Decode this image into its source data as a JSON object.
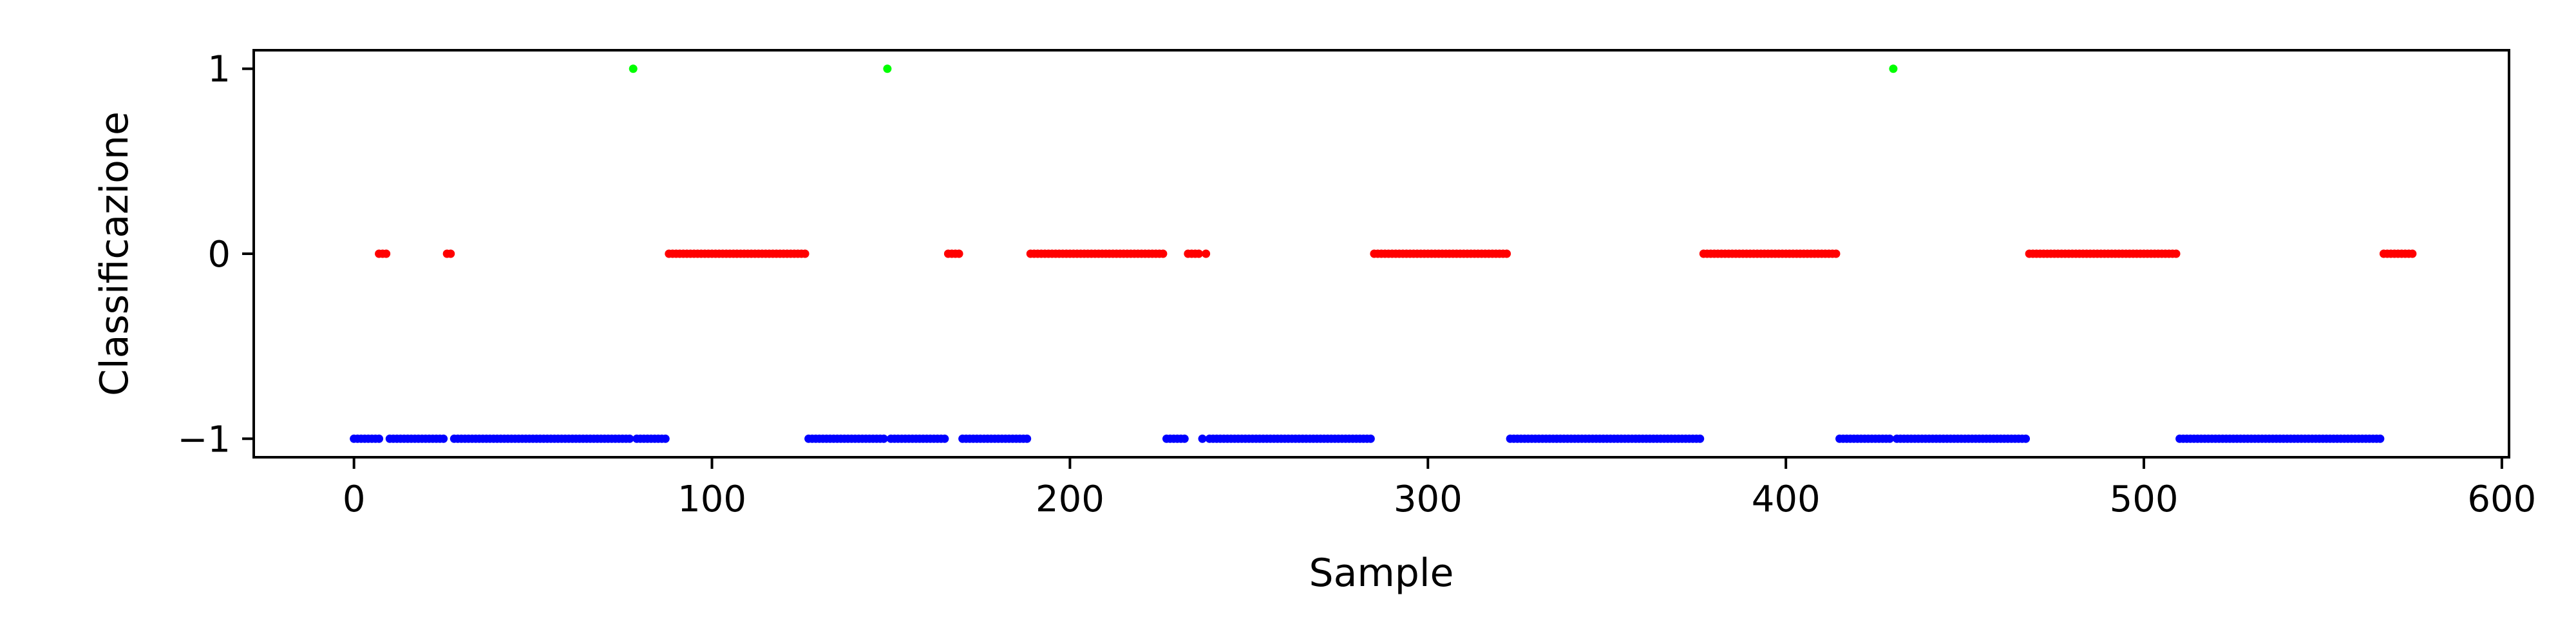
{
  "chart_data": {
    "type": "scatter",
    "title": "",
    "xlabel": "Sample",
    "ylabel": "Classificazione",
    "xlim": [
      -28,
      602
    ],
    "ylim": [
      -1.1,
      1.1
    ],
    "xticks": [
      0,
      100,
      200,
      300,
      400,
      500,
      600
    ],
    "xtick_labels": [
      "0",
      "100",
      "200",
      "300",
      "400",
      "500",
      "600"
    ],
    "yticks": [
      -1,
      0,
      1
    ],
    "ytick_labels": [
      "−1",
      "0",
      "1"
    ],
    "grid": false,
    "legend": "none",
    "colors": {
      "-1": "#0000ff",
      "0": "#ff0000",
      "1": "#00ff00"
    },
    "segments": [
      {
        "y": -1,
        "x_start": 0,
        "x_end": 7
      },
      {
        "y": 0,
        "x_start": 7,
        "x_end": 9
      },
      {
        "y": -1,
        "x_start": 10,
        "x_end": 25
      },
      {
        "y": 0,
        "x_start": 26,
        "x_end": 27
      },
      {
        "y": -1,
        "x_start": 28,
        "x_end": 77
      },
      {
        "y": 1,
        "x_start": 78,
        "x_end": 78
      },
      {
        "y": -1,
        "x_start": 79,
        "x_end": 87
      },
      {
        "y": 0,
        "x_start": 88,
        "x_end": 126
      },
      {
        "y": -1,
        "x_start": 127,
        "x_end": 148
      },
      {
        "y": 1,
        "x_start": 149,
        "x_end": 149
      },
      {
        "y": -1,
        "x_start": 150,
        "x_end": 165
      },
      {
        "y": 0,
        "x_start": 166,
        "x_end": 169
      },
      {
        "y": -1,
        "x_start": 170,
        "x_end": 188
      },
      {
        "y": 0,
        "x_start": 189,
        "x_end": 226
      },
      {
        "y": -1,
        "x_start": 227,
        "x_end": 232
      },
      {
        "y": 0,
        "x_start": 233,
        "x_end": 236
      },
      {
        "y": -1,
        "x_start": 237,
        "x_end": 237
      },
      {
        "y": 0,
        "x_start": 238,
        "x_end": 238
      },
      {
        "y": -1,
        "x_start": 239,
        "x_end": 284
      },
      {
        "y": 0,
        "x_start": 285,
        "x_end": 322
      },
      {
        "y": -1,
        "x_start": 323,
        "x_end": 376
      },
      {
        "y": 0,
        "x_start": 377,
        "x_end": 414
      },
      {
        "y": -1,
        "x_start": 415,
        "x_end": 429
      },
      {
        "y": 1,
        "x_start": 430,
        "x_end": 430
      },
      {
        "y": -1,
        "x_start": 431,
        "x_end": 467
      },
      {
        "y": 0,
        "x_start": 468,
        "x_end": 509
      },
      {
        "y": -1,
        "x_start": 510,
        "x_end": 566
      },
      {
        "y": 0,
        "x_start": 567,
        "x_end": 575
      }
    ]
  }
}
